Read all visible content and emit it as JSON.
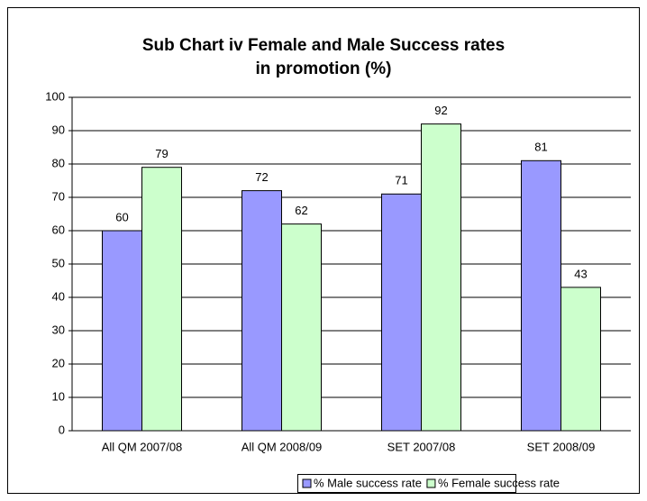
{
  "chart_data": {
    "type": "bar",
    "title": "Sub Chart iv Female and Male Success rates in promotion (%)",
    "categories": [
      "All QM 2007/08",
      "All QM 2008/09",
      "SET 2007/08",
      "SET 2008/09"
    ],
    "series": [
      {
        "name": "% Male success rate",
        "color": "#9999ff",
        "values": [
          60,
          72,
          71,
          81
        ]
      },
      {
        "name": "% Female success rate",
        "color": "#ccffcc",
        "values": [
          79,
          62,
          92,
          43
        ]
      }
    ],
    "ylim": [
      0,
      100
    ],
    "yticks": [
      0,
      10,
      20,
      30,
      40,
      50,
      60,
      70,
      80,
      90,
      100
    ],
    "grid": true,
    "legend": "bottom"
  }
}
